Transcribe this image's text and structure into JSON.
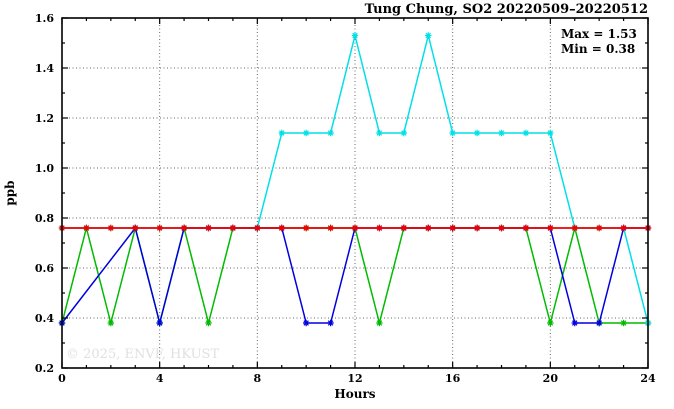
{
  "title": "Tung Chung, SO2 20220509–20220512",
  "annotation": {
    "max_label": "Max = 1.53",
    "min_label": "Min = 0.38"
  },
  "watermark": "© 2025, ENVF, HKUST",
  "axes": {
    "xlabel": "Hours",
    "ylabel": "ppb"
  },
  "colors": {
    "red": "#ee0000",
    "green": "#00bb00",
    "blue": "#0000e0",
    "cyan": "#00e0e8",
    "grid": "#666666",
    "border": "#000000",
    "watermark_color": "#e0e0e0"
  },
  "chart_data": {
    "type": "line",
    "title": "Tung Chung, SO2 20220509–20220512",
    "xlabel": "Hours",
    "ylabel": "ppb",
    "xlim": [
      0,
      24
    ],
    "ylim": [
      0.2,
      1.6
    ],
    "x_major_ticks": [
      0,
      4,
      8,
      12,
      16,
      20,
      24
    ],
    "x_minor_step": 1,
    "y_major_ticks": [
      0.2,
      0.4,
      0.6,
      0.8,
      1.0,
      1.2,
      1.4,
      1.6
    ],
    "y_minor_step": 0.1,
    "grid": true,
    "legend": false,
    "max": 1.53,
    "min": 0.38,
    "x": [
      0,
      1,
      2,
      3,
      4,
      5,
      6,
      7,
      8,
      9,
      10,
      11,
      12,
      13,
      14,
      15,
      16,
      17,
      18,
      19,
      20,
      21,
      22,
      23,
      24
    ],
    "series": [
      {
        "name": "green",
        "color": "#00bb00",
        "marker": "asterisk",
        "values": [
          0.38,
          0.76,
          0.38,
          0.76,
          0.38,
          0.76,
          0.38,
          0.76,
          0.76,
          0.76,
          0.76,
          0.76,
          0.76,
          0.38,
          0.76,
          0.76,
          0.76,
          0.76,
          0.76,
          0.76,
          0.38,
          0.76,
          0.38,
          0.38,
          0.38
        ]
      },
      {
        "name": "cyan",
        "color": "#00e0e8",
        "marker": "asterisk",
        "values": [
          0.76,
          0.76,
          0.76,
          0.76,
          0.76,
          0.76,
          0.76,
          0.76,
          0.76,
          1.14,
          1.14,
          1.14,
          1.53,
          1.14,
          1.14,
          1.53,
          1.14,
          1.14,
          1.14,
          1.14,
          1.14,
          0.76,
          0.76,
          0.76,
          0.38
        ]
      },
      {
        "name": "blue",
        "color": "#0000e0",
        "marker": "asterisk",
        "values": [
          0.38,
          null,
          null,
          0.76,
          0.38,
          0.76,
          0.76,
          0.76,
          0.76,
          0.76,
          0.38,
          0.38,
          0.76,
          0.76,
          0.76,
          0.76,
          0.76,
          0.76,
          0.76,
          0.76,
          0.76,
          0.38,
          0.38,
          0.76,
          0.76
        ]
      },
      {
        "name": "red",
        "color": "#ee0000",
        "marker": "asterisk",
        "values": [
          0.76,
          0.76,
          0.76,
          0.76,
          0.76,
          0.76,
          0.76,
          0.76,
          0.76,
          0.76,
          0.76,
          0.76,
          0.76,
          0.76,
          0.76,
          0.76,
          0.76,
          0.76,
          0.76,
          0.76,
          0.76,
          0.76,
          0.76,
          0.76,
          0.76
        ]
      }
    ]
  }
}
